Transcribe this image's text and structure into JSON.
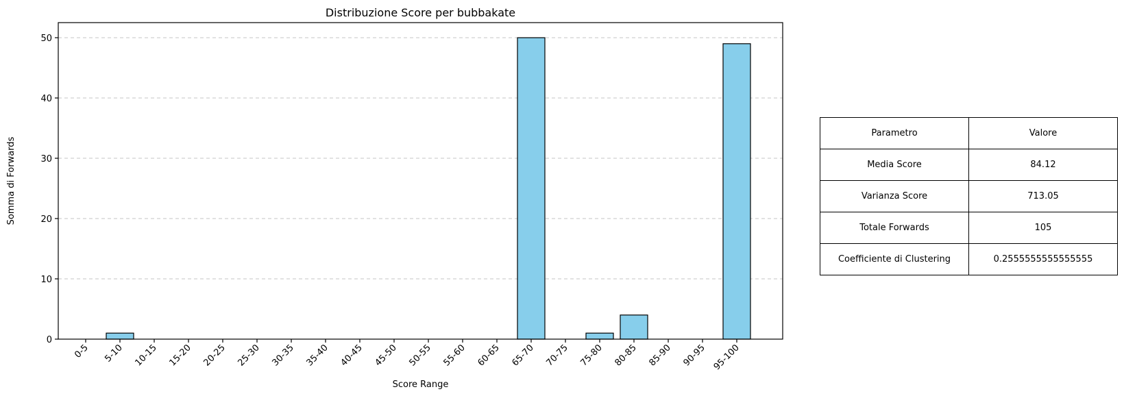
{
  "chart_data": {
    "type": "bar",
    "title": "Distribuzione Score per bubbakate",
    "xlabel": "Score Range",
    "ylabel": "Somma di Forwards",
    "categories": [
      "0-5",
      "5-10",
      "10-15",
      "15-20",
      "20-25",
      "25-30",
      "30-35",
      "35-40",
      "40-45",
      "45-50",
      "50-55",
      "55-60",
      "60-65",
      "65-70",
      "70-75",
      "75-80",
      "80-85",
      "85-90",
      "90-95",
      "95-100"
    ],
    "values": [
      0,
      1,
      0,
      0,
      0,
      0,
      0,
      0,
      0,
      0,
      0,
      0,
      0,
      50,
      0,
      1,
      4,
      0,
      0,
      49
    ],
    "yticks": [
      "0",
      "10",
      "20",
      "30",
      "40",
      "50"
    ],
    "ylim": [
      0,
      52.5
    ],
    "grid": "y, dashed",
    "bar_color": "#87ceeb",
    "edge_color": "#000000"
  },
  "table": {
    "headers": [
      "Parametro",
      "Valore"
    ],
    "rows": [
      [
        "Media Score",
        "84.12"
      ],
      [
        "Varianza Score",
        "713.05"
      ],
      [
        "Totale Forwards",
        "105"
      ],
      [
        "Coefficiente di Clustering",
        "0.2555555555555555"
      ]
    ]
  }
}
